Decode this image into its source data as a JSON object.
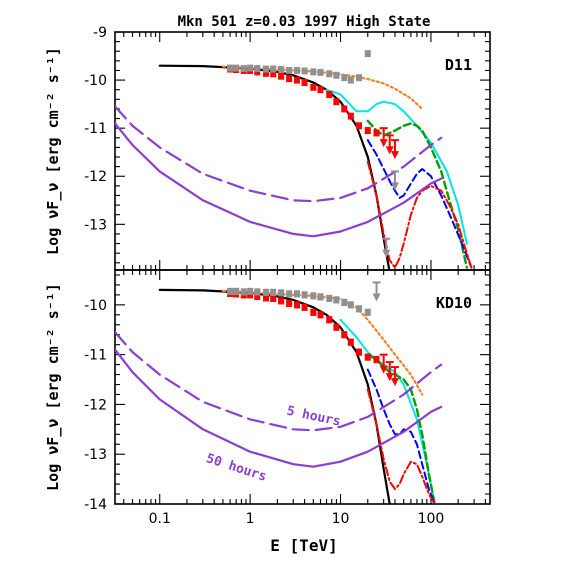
{
  "chart_data": {
    "type": "line",
    "title": "Mkn 501 z=0.03 1997 High State",
    "xlabel": "E [TeV]",
    "ylabel": "Log νF_ν [erg cm⁻² s⁻¹]",
    "xscale": "log",
    "xlim": [
      0.032,
      450
    ],
    "x_ticklabels": [
      "0.1",
      "1",
      "10",
      "100"
    ],
    "x_ticks": [
      0.1,
      1,
      10,
      100
    ],
    "colors": {
      "intrinsic": "#000000",
      "observed_data": "#ff0000",
      "deabsorbed_data": "#909090",
      "extrapolation": "#ff7f24",
      "model_cyan": "#00e5e5",
      "model_green": "#00a000",
      "model_blue": "#0000ff",
      "model_red": "#ff0000",
      "sensitivity": "#8a3fd1"
    },
    "panels": [
      {
        "label": "D11",
        "ylim": [
          -13.95,
          -9
        ],
        "y_ticklabels": [
          "-9",
          "-10",
          "-11",
          "-12",
          "-13"
        ],
        "y_ticks": [
          -9,
          -10,
          -11,
          -12,
          -13
        ],
        "series": [
          {
            "key": "intrinsic",
            "style": "solid",
            "width": 2.2,
            "x": [
              0.1,
              0.3,
              1,
              2,
              3,
              5,
              7,
              10,
              15,
              20,
              25,
              30,
              35
            ],
            "y": [
              -9.7,
              -9.71,
              -9.76,
              -9.83,
              -9.9,
              -10.05,
              -10.2,
              -10.45,
              -10.95,
              -11.6,
              -12.4,
              -13.3,
              -14
            ]
          },
          {
            "key": "extrapolation",
            "style": "dotted",
            "width": 2.2,
            "x": [
              0.5,
              1,
              2,
              5,
              10,
              15,
              20,
              30,
              40,
              60,
              80
            ],
            "y": [
              -9.72,
              -9.75,
              -9.78,
              -9.82,
              -9.88,
              -9.93,
              -9.98,
              -10.07,
              -10.18,
              -10.38,
              -10.6
            ]
          },
          {
            "key": "model_cyan",
            "style": "solid",
            "width": 2,
            "x": [
              7,
              10,
              15,
              20,
              25,
              30,
              40,
              50,
              70,
              100,
              150,
              200,
              250
            ],
            "y": [
              -10.2,
              -10.3,
              -10.65,
              -10.65,
              -10.5,
              -10.45,
              -10.5,
              -10.65,
              -10.95,
              -11.3,
              -11.9,
              -12.6,
              -13.4
            ]
          },
          {
            "key": "model_green",
            "style": "dashed",
            "width": 2.4,
            "x": [
              20,
              25,
              30,
              35,
              40,
              50,
              60,
              70,
              80,
              100,
              130,
              160,
              200,
              250
            ],
            "y": [
              -10.85,
              -11.05,
              -11.15,
              -11.1,
              -11.05,
              -10.95,
              -10.9,
              -10.95,
              -11.05,
              -11.4,
              -11.9,
              -12.5,
              -13.1,
              -13.9
            ]
          },
          {
            "key": "model_blue",
            "style": "dashed",
            "width": 2,
            "x": [
              20,
              25,
              30,
              35,
              40,
              45,
              50,
              60,
              70,
              80,
              100,
              130,
              170,
              220,
              280
            ],
            "y": [
              -11.25,
              -11.55,
              -11.85,
              -12.1,
              -12.3,
              -12.45,
              -12.4,
              -12.15,
              -11.95,
              -11.85,
              -12,
              -12.4,
              -12.9,
              -13.4,
              -13.9
            ]
          },
          {
            "key": "model_red",
            "style": "dashdot",
            "width": 2,
            "x": [
              20,
              25,
              30,
              35,
              40,
              45,
              50,
              60,
              70,
              80,
              100,
              130,
              160,
              200,
              240,
              280
            ],
            "y": [
              -11.7,
              -12.4,
              -13.2,
              -13.75,
              -13.9,
              -13.7,
              -13.4,
              -12.8,
              -12.45,
              -12.3,
              -12.2,
              -12.3,
              -12.6,
              -13,
              -13.5,
              -13.9
            ]
          },
          {
            "key": "sensitivity",
            "name": "5 hours",
            "style": "longdash",
            "width": 2.2,
            "x": [
              0.032,
              0.05,
              0.1,
              0.3,
              1,
              3,
              5,
              10,
              20,
              50,
              100,
              130
            ],
            "y": [
              -10.55,
              -10.95,
              -11.4,
              -11.95,
              -12.3,
              -12.5,
              -12.52,
              -12.45,
              -12.25,
              -11.8,
              -11.35,
              -11.2
            ]
          },
          {
            "key": "sensitivity",
            "name": "50 hours",
            "style": "solid",
            "width": 2.2,
            "x": [
              0.032,
              0.05,
              0.1,
              0.3,
              1,
              3,
              5,
              10,
              20,
              50,
              100,
              130
            ],
            "y": [
              -10.9,
              -11.35,
              -11.9,
              -12.5,
              -12.95,
              -13.2,
              -13.25,
              -13.15,
              -12.95,
              -12.55,
              -12.15,
              -12.05
            ]
          }
        ],
        "data_points": [
          {
            "key": "observed_data",
            "x": [
              0.6,
              0.7,
              0.85,
              1,
              1.2,
              1.5,
              1.8,
              2.2,
              2.7,
              3.3,
              4,
              5,
              6,
              7.5,
              9,
              11,
              13,
              16,
              20,
              25
            ],
            "y": [
              -9.77,
              -9.78,
              -9.8,
              -9.8,
              -9.83,
              -9.86,
              -9.87,
              -9.92,
              -9.97,
              -10,
              -10.05,
              -10.15,
              -10.2,
              -10.3,
              -10.45,
              -10.6,
              -10.75,
              -10.95,
              -11.05,
              -11.1
            ],
            "err": 0.06
          },
          {
            "key": "deabsorbed_data",
            "x": [
              0.6,
              0.7,
              0.85,
              1,
              1.2,
              1.5,
              1.8,
              2.2,
              2.7,
              3.3,
              4,
              5,
              6,
              7.5,
              9,
              11,
              13,
              16,
              20
            ],
            "y": [
              -9.75,
              -9.75,
              -9.76,
              -9.75,
              -9.76,
              -9.77,
              -9.77,
              -9.78,
              -9.8,
              -9.8,
              -9.81,
              -9.83,
              -9.84,
              -9.87,
              -9.9,
              -9.95,
              -10,
              -9.95,
              -9.45
            ],
            "err": 0.06
          }
        ],
        "upper_limits": [
          {
            "key": "observed_data",
            "x": [
              30,
              35,
              40
            ],
            "y": [
              -11,
              -11.15,
              -11.25
            ]
          },
          {
            "key": "deabsorbed_data",
            "x": [
              32,
              40
            ],
            "y": [
              -13.3,
              -11.9
            ]
          }
        ]
      },
      {
        "label": "KD10",
        "ylim": [
          -14,
          -9.3
        ],
        "y_ticklabels": [
          "-10",
          "-11",
          "-12",
          "-13",
          "-14"
        ],
        "y_ticks": [
          -10,
          -11,
          -12,
          -13,
          -14
        ],
        "series": [
          {
            "key": "intrinsic",
            "style": "solid",
            "width": 2.2,
            "x": [
              0.1,
              0.3,
              1,
              2,
              3,
              5,
              7,
              10,
              15,
              20,
              25,
              30,
              35
            ],
            "y": [
              -9.7,
              -9.71,
              -9.76,
              -9.83,
              -9.9,
              -10.05,
              -10.2,
              -10.45,
              -10.95,
              -11.6,
              -12.4,
              -13.3,
              -14
            ]
          },
          {
            "key": "extrapolation",
            "style": "dotted",
            "width": 2.2,
            "x": [
              0.5,
              1,
              2,
              5,
              10,
              15,
              20,
              30,
              40,
              60,
              80
            ],
            "y": [
              -9.72,
              -9.75,
              -9.78,
              -9.82,
              -9.88,
              -10.05,
              -10.3,
              -10.7,
              -11,
              -11.4,
              -11.8
            ]
          },
          {
            "key": "model_cyan",
            "style": "solid",
            "width": 2,
            "x": [
              10,
              15,
              20,
              25,
              30,
              40,
              50,
              70,
              90,
              110
            ],
            "y": [
              -10.3,
              -10.65,
              -10.95,
              -11.1,
              -11.2,
              -11.35,
              -11.6,
              -12.3,
              -13.2,
              -14
            ]
          },
          {
            "key": "model_green",
            "style": "dashed",
            "width": 2.4,
            "x": [
              20,
              25,
              30,
              35,
              40,
              50,
              60,
              70,
              80,
              95,
              110
            ],
            "y": [
              -11,
              -11.1,
              -11.25,
              -11.35,
              -11.4,
              -11.5,
              -11.7,
              -12.1,
              -12.6,
              -13.4,
              -14
            ]
          },
          {
            "key": "model_blue",
            "style": "dashed",
            "width": 2,
            "x": [
              20,
              25,
              30,
              35,
              40,
              45,
              50,
              60,
              70,
              80,
              95,
              110
            ],
            "y": [
              -11.3,
              -11.7,
              -12.1,
              -12.4,
              -12.6,
              -12.6,
              -12.5,
              -12.55,
              -12.8,
              -13.2,
              -13.7,
              -14
            ]
          },
          {
            "key": "model_red",
            "style": "dashdot",
            "width": 2,
            "x": [
              20,
              25,
              30,
              35,
              40,
              45,
              50,
              60,
              70,
              80,
              95,
              110
            ],
            "y": [
              -11.7,
              -12.4,
              -13.1,
              -13.55,
              -13.7,
              -13.6,
              -13.4,
              -13.15,
              -13.2,
              -13.45,
              -13.8,
              -14
            ]
          },
          {
            "key": "sensitivity",
            "name": "5 hours",
            "style": "longdash",
            "width": 2.2,
            "x": [
              0.032,
              0.05,
              0.1,
              0.3,
              1,
              3,
              5,
              10,
              20,
              50,
              100,
              130
            ],
            "y": [
              -10.55,
              -10.95,
              -11.4,
              -11.95,
              -12.3,
              -12.5,
              -12.52,
              -12.45,
              -12.25,
              -11.8,
              -11.35,
              -11.2
            ]
          },
          {
            "key": "sensitivity",
            "name": "50 hours",
            "style": "solid",
            "width": 2.2,
            "x": [
              0.032,
              0.05,
              0.1,
              0.3,
              1,
              3,
              5,
              10,
              20,
              50,
              100,
              130
            ],
            "y": [
              -10.9,
              -11.35,
              -11.9,
              -12.5,
              -12.95,
              -13.2,
              -13.25,
              -13.15,
              -12.95,
              -12.55,
              -12.15,
              -12.05
            ]
          }
        ],
        "data_points": [
          {
            "key": "observed_data",
            "x": [
              0.6,
              0.7,
              0.85,
              1,
              1.2,
              1.5,
              1.8,
              2.2,
              2.7,
              3.3,
              4,
              5,
              6,
              7.5,
              9,
              11,
              13,
              16,
              20,
              25
            ],
            "y": [
              -9.77,
              -9.78,
              -9.8,
              -9.8,
              -9.83,
              -9.86,
              -9.87,
              -9.92,
              -9.97,
              -10,
              -10.05,
              -10.15,
              -10.2,
              -10.3,
              -10.45,
              -10.6,
              -10.75,
              -10.95,
              -11.05,
              -11.1
            ],
            "err": 0.06
          },
          {
            "key": "deabsorbed_data",
            "x": [
              0.6,
              0.7,
              0.85,
              1,
              1.2,
              1.5,
              1.8,
              2.2,
              2.7,
              3.3,
              4,
              5,
              6,
              7.5,
              9,
              11,
              13,
              16,
              20
            ],
            "y": [
              -9.73,
              -9.73,
              -9.74,
              -9.73,
              -9.74,
              -9.75,
              -9.75,
              -9.76,
              -9.78,
              -9.78,
              -9.8,
              -9.82,
              -9.84,
              -9.87,
              -9.9,
              -9.95,
              -10,
              -10.08,
              -10.15
            ],
            "err": 0.06
          }
        ],
        "upper_limits": [
          {
            "key": "observed_data",
            "x": [
              30,
              35,
              40
            ],
            "y": [
              -11,
              -11.15,
              -11.25
            ]
          },
          {
            "key": "deabsorbed_data",
            "x": [
              25
            ],
            "y": [
              -9.55
            ]
          }
        ],
        "annotations": [
          {
            "text": "5 hours",
            "x": 2.5,
            "y": -12.2,
            "rotate": 12
          },
          {
            "text": "50 hours",
            "x": 0.32,
            "y": -13.15,
            "rotate": 18
          }
        ]
      }
    ]
  }
}
